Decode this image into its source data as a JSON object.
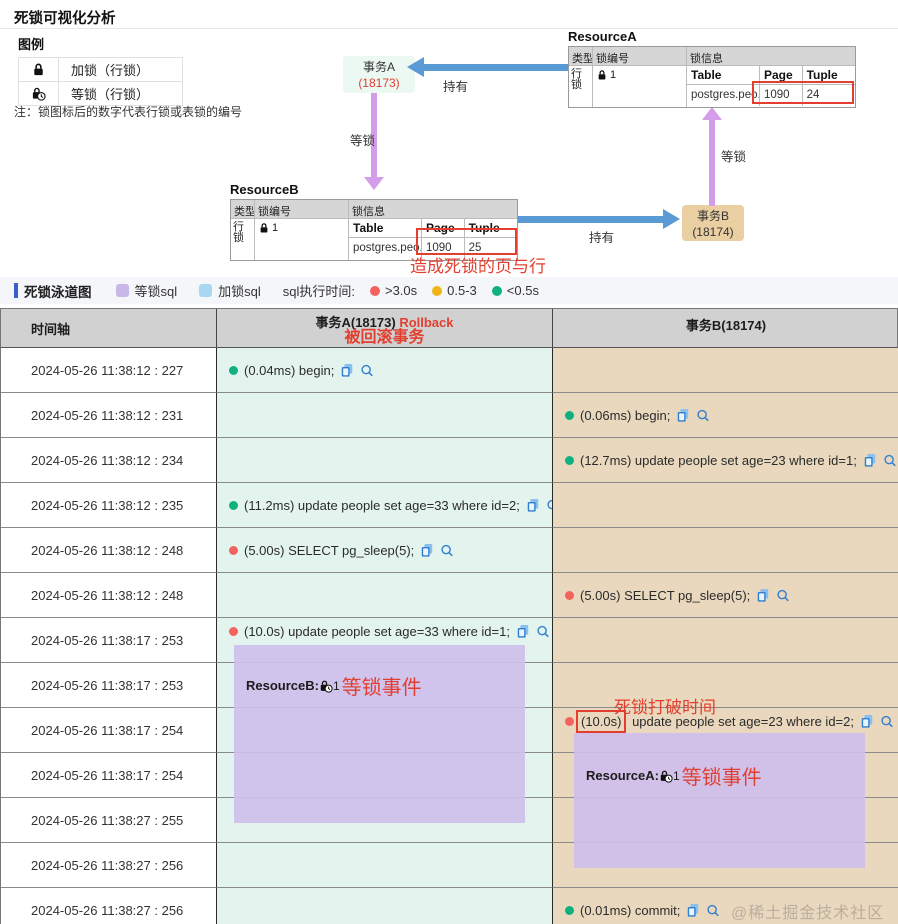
{
  "page": {
    "title": "死锁可视化分析",
    "watermark": "@稀土掘金技术社区"
  },
  "colors": {
    "accent_red": "#e23f30",
    "green_dot": "#10b07f",
    "red_dot": "#f3625e",
    "yellow_dot": "#efb517",
    "hold_arrow_blue": "#5b9bd5",
    "wait_arrow_purple": "#d49de9",
    "wait_purple": "#c9b7e9",
    "txn_a_bg": "#ecf8f2",
    "txn_b_bg": "#eacfa3",
    "col_a_bg": "#e3f4ef",
    "col_b_bg": "#e9d8bd"
  },
  "legend": {
    "title": "图例",
    "rows": [
      {
        "icon": "lock-closed-icon",
        "label": "加锁（行锁）"
      },
      {
        "icon": "lock-wait-icon",
        "label": "等锁（行锁）"
      }
    ],
    "note": "注：锁图标后的数字代表行锁或表锁的编号"
  },
  "diagram": {
    "txn_a": {
      "name": "事务A",
      "id": "(18173)"
    },
    "txn_b": {
      "name": "事务B",
      "id": "(18174)"
    },
    "hold_label": "持有",
    "wait_label": "等锁",
    "resource_a": {
      "title": "ResourceA",
      "headers": {
        "type": "类型",
        "lock_no": "锁编号",
        "lock_info": "锁信息"
      },
      "row_type": "行锁",
      "lock_no": "1",
      "inner_headers": {
        "table": "Table",
        "page": "Page",
        "tuple": "Tuple"
      },
      "inner_row": {
        "table": "postgres.peo...",
        "page": "1090",
        "tuple": "24"
      }
    },
    "resource_b": {
      "title": "ResourceB",
      "headers": {
        "type": "类型",
        "lock_no": "锁编号",
        "lock_info": "锁信息"
      },
      "row_type": "行锁",
      "lock_no": "1",
      "inner_headers": {
        "table": "Table",
        "page": "Page",
        "tuple": "Tuple"
      },
      "inner_row": {
        "table": "postgres.peo...",
        "page": "1090",
        "tuple": "25"
      }
    },
    "annotation": "造成死锁的页与行"
  },
  "swimlane_bar": {
    "title": "死锁泳道图",
    "wait_sql": "等锁sql",
    "lock_sql": "加锁sql",
    "exec_time_label": "sql执行时间:",
    "times": [
      {
        "color": "#f3625e",
        "label": ">3.0s"
      },
      {
        "color": "#efb517",
        "label": "0.5-3"
      },
      {
        "color": "#10b07f",
        "label": "<0.5s"
      }
    ]
  },
  "table": {
    "headers": {
      "timeline": "时间轴",
      "txn_a": "事务A(18173)",
      "txn_a_tag": "Rollback",
      "txn_a_note": "被回滚事务",
      "txn_b": "事务B(18174)"
    },
    "rows": [
      {
        "time": "2024-05-26 11:38:12 : 227",
        "a": {
          "dot": "green",
          "text": "(0.04ms) begin;"
        }
      },
      {
        "time": "2024-05-26 11:38:12 : 231",
        "b": {
          "dot": "green",
          "text": "(0.06ms) begin;"
        }
      },
      {
        "time": "2024-05-26 11:38:12 : 234",
        "b": {
          "dot": "green",
          "text": "(12.7ms) update people set age=23 where id=1;"
        }
      },
      {
        "time": "2024-05-26 11:38:12 : 235",
        "a": {
          "dot": "green",
          "text": "(11.2ms) update people set age=33 where id=2;"
        }
      },
      {
        "time": "2024-05-26 11:38:12 : 248",
        "a": {
          "dot": "red",
          "text": "(5.00s) SELECT pg_sleep(5);"
        }
      },
      {
        "time": "2024-05-26 11:38:12 : 248",
        "b": {
          "dot": "red",
          "text": "(5.00s) SELECT pg_sleep(5);"
        }
      },
      {
        "time": "2024-05-26 11:38:17 : 253",
        "a": {
          "dot": "red",
          "text": "(10.0s) update people set age=33 where id=1;"
        }
      },
      {
        "time": "2024-05-26 11:38:17 : 253"
      },
      {
        "time": "2024-05-26 11:38:17 : 254",
        "b": {
          "dot": "red",
          "text": "(10.0s) update people set age=23 where id=2;",
          "highlight": true
        }
      },
      {
        "time": "2024-05-26 11:38:17 : 254"
      },
      {
        "time": "2024-05-26 11:38:27 : 255"
      },
      {
        "time": "2024-05-26 11:38:27 : 256"
      },
      {
        "time": "2024-05-26 11:38:27 : 256",
        "b": {
          "dot": "green",
          "text": "(0.01ms) commit;"
        }
      }
    ],
    "wait_events": {
      "a": {
        "resource": "ResourceB:",
        "num": "1",
        "note": "等锁事件"
      },
      "b": {
        "resource": "ResourceA:",
        "num": "1",
        "note": "等锁事件"
      }
    },
    "deadlock_break_label": "死锁打破时间"
  }
}
